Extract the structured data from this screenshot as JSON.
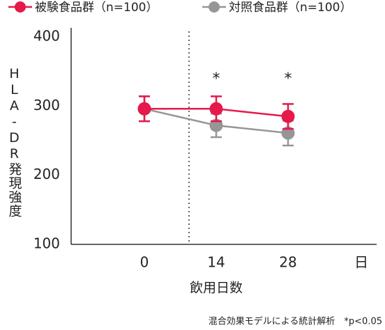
{
  "chart_data": {
    "type": "line",
    "categories": [
      "0",
      "14",
      "28"
    ],
    "x_unit": "日",
    "xlabel": "飲用日数",
    "ylabel": "HLA-DR発現強度",
    "ylim": [
      100,
      400
    ],
    "yticks": [
      100,
      200,
      300,
      400
    ],
    "series": [
      {
        "name": "被験食品群（n=100）",
        "color": "#e5194a",
        "values": [
          296,
          296,
          285
        ],
        "errors": [
          18,
          18,
          18
        ]
      },
      {
        "name": "対照食品群（n=100）",
        "color": "#969696",
        "values": [
          296,
          272,
          261
        ],
        "errors": [
          18,
          17,
          18
        ]
      }
    ],
    "significance": [
      null,
      "*",
      "*"
    ],
    "note": "混合効果モデルによる統計解析　*p<0.05"
  }
}
